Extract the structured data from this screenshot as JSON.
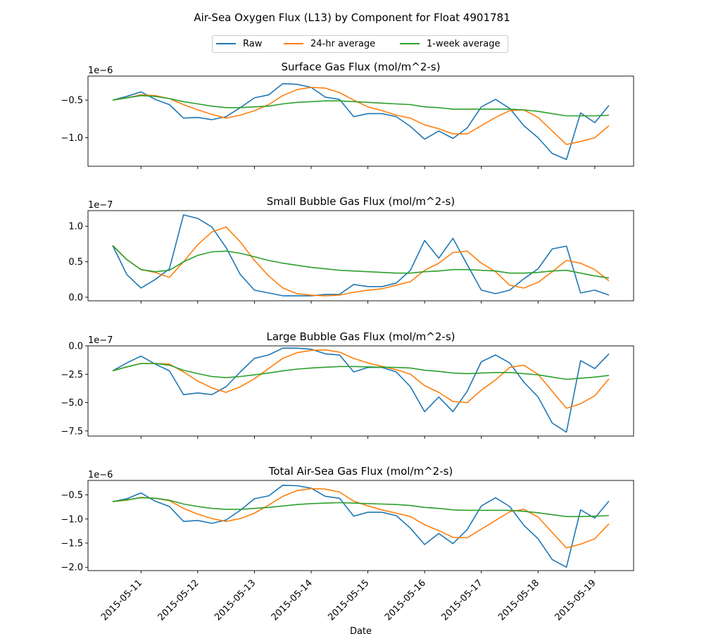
{
  "figure_title": "Air-Sea Oxygen Flux (L13) by Component for Float 4901781",
  "legend": [
    {
      "label": "Raw",
      "color": "#1f77b4"
    },
    {
      "label": "24-hr average",
      "color": "#ff7f0e"
    },
    {
      "label": "1-week average",
      "color": "#2ca02c"
    }
  ],
  "chart_data": [
    {
      "type": "line",
      "title": "Surface Gas Flux (mol/m^2-s)",
      "offset_label": "1e−6",
      "xlabel": "",
      "ylabel": "",
      "ylim": [
        -1.38,
        -0.18
      ],
      "yticks": [
        -1.0,
        -0.5
      ],
      "ytick_labels": [
        "−1.0",
        "−0.5"
      ],
      "x": [
        "2015-05-10 12:00",
        "2015-05-10 18:00",
        "2015-05-11 00:00",
        "2015-05-11 06:00",
        "2015-05-11 12:00",
        "2015-05-11 18:00",
        "2015-05-12 00:00",
        "2015-05-12 06:00",
        "2015-05-12 12:00",
        "2015-05-12 18:00",
        "2015-05-13 00:00",
        "2015-05-13 06:00",
        "2015-05-13 12:00",
        "2015-05-13 18:00",
        "2015-05-14 00:00",
        "2015-05-14 06:00",
        "2015-05-14 12:00",
        "2015-05-14 18:00",
        "2015-05-15 00:00",
        "2015-05-15 06:00",
        "2015-05-15 12:00",
        "2015-05-15 18:00",
        "2015-05-16 00:00",
        "2015-05-16 06:00",
        "2015-05-16 12:00",
        "2015-05-16 18:00",
        "2015-05-17 00:00",
        "2015-05-17 06:00",
        "2015-05-17 12:00",
        "2015-05-17 18:00",
        "2015-05-18 00:00",
        "2015-05-18 06:00",
        "2015-05-18 12:00",
        "2015-05-18 18:00",
        "2015-05-19 00:00",
        "2015-05-19 06:00"
      ],
      "series": [
        {
          "name": "Raw",
          "color": "#1f77b4",
          "values": [
            -0.5,
            -0.45,
            -0.39,
            -0.49,
            -0.56,
            -0.74,
            -0.73,
            -0.76,
            -0.72,
            -0.6,
            -0.47,
            -0.43,
            -0.28,
            -0.29,
            -0.33,
            -0.46,
            -0.49,
            -0.72,
            -0.68,
            -0.68,
            -0.72,
            -0.85,
            -1.02,
            -0.91,
            -1.01,
            -0.87,
            -0.59,
            -0.49,
            -0.61,
            -0.84,
            -1.0,
            -1.21,
            -1.29,
            -0.67,
            -0.8,
            -0.57
          ]
        },
        {
          "name": "24-hr average",
          "color": "#ff7f0e",
          "values": [
            -0.5,
            -0.47,
            -0.43,
            -0.44,
            -0.48,
            -0.56,
            -0.63,
            -0.69,
            -0.74,
            -0.7,
            -0.64,
            -0.56,
            -0.44,
            -0.36,
            -0.33,
            -0.34,
            -0.4,
            -0.5,
            -0.59,
            -0.64,
            -0.7,
            -0.74,
            -0.83,
            -0.88,
            -0.95,
            -0.95,
            -0.84,
            -0.73,
            -0.64,
            -0.63,
            -0.73,
            -0.91,
            -1.09,
            -1.05,
            -1.0,
            -0.84
          ]
        },
        {
          "name": "1-week average",
          "color": "#2ca02c",
          "values": [
            -0.5,
            -0.47,
            -0.44,
            -0.45,
            -0.48,
            -0.52,
            -0.55,
            -0.58,
            -0.6,
            -0.6,
            -0.59,
            -0.58,
            -0.55,
            -0.53,
            -0.52,
            -0.51,
            -0.51,
            -0.52,
            -0.53,
            -0.54,
            -0.55,
            -0.56,
            -0.59,
            -0.6,
            -0.62,
            -0.62,
            -0.62,
            -0.62,
            -0.62,
            -0.63,
            -0.65,
            -0.68,
            -0.71,
            -0.71,
            -0.71,
            -0.7
          ]
        }
      ]
    },
    {
      "type": "line",
      "title": "Small Bubble Gas Flux (mol/m^2-s)",
      "offset_label": "1e−7",
      "xlabel": "",
      "ylabel": "",
      "ylim": [
        -0.05,
        1.22
      ],
      "yticks": [
        0.0,
        0.5,
        1.0
      ],
      "ytick_labels": [
        "0.0",
        "0.5",
        "1.0"
      ],
      "x": [
        "2015-05-10 12:00",
        "2015-05-10 18:00",
        "2015-05-11 00:00",
        "2015-05-11 06:00",
        "2015-05-11 12:00",
        "2015-05-11 18:00",
        "2015-05-12 00:00",
        "2015-05-12 06:00",
        "2015-05-12 12:00",
        "2015-05-12 18:00",
        "2015-05-13 00:00",
        "2015-05-13 06:00",
        "2015-05-13 12:00",
        "2015-05-13 18:00",
        "2015-05-14 00:00",
        "2015-05-14 06:00",
        "2015-05-14 12:00",
        "2015-05-14 18:00",
        "2015-05-15 00:00",
        "2015-05-15 06:00",
        "2015-05-15 12:00",
        "2015-05-15 18:00",
        "2015-05-16 00:00",
        "2015-05-16 06:00",
        "2015-05-16 12:00",
        "2015-05-16 18:00",
        "2015-05-17 00:00",
        "2015-05-17 06:00",
        "2015-05-17 12:00",
        "2015-05-17 18:00",
        "2015-05-18 00:00",
        "2015-05-18 06:00",
        "2015-05-18 12:00",
        "2015-05-18 18:00",
        "2015-05-19 00:00",
        "2015-05-19 06:00"
      ],
      "series": [
        {
          "name": "Raw",
          "color": "#1f77b4",
          "values": [
            0.73,
            0.32,
            0.13,
            0.25,
            0.4,
            1.16,
            1.11,
            0.99,
            0.7,
            0.32,
            0.1,
            0.06,
            0.02,
            0.02,
            0.02,
            0.04,
            0.04,
            0.18,
            0.15,
            0.15,
            0.2,
            0.38,
            0.8,
            0.55,
            0.83,
            0.46,
            0.1,
            0.05,
            0.1,
            0.26,
            0.4,
            0.68,
            0.72,
            0.06,
            0.1,
            0.03
          ]
        },
        {
          "name": "24-hr average",
          "color": "#ff7f0e",
          "values": [
            0.73,
            0.53,
            0.39,
            0.35,
            0.28,
            0.5,
            0.74,
            0.92,
            0.99,
            0.78,
            0.52,
            0.3,
            0.13,
            0.05,
            0.03,
            0.02,
            0.03,
            0.07,
            0.1,
            0.12,
            0.17,
            0.22,
            0.38,
            0.48,
            0.63,
            0.65,
            0.48,
            0.36,
            0.17,
            0.13,
            0.21,
            0.36,
            0.52,
            0.48,
            0.39,
            0.23
          ]
        },
        {
          "name": "1-week average",
          "color": "#2ca02c",
          "values": [
            0.73,
            0.53,
            0.39,
            0.36,
            0.38,
            0.5,
            0.59,
            0.64,
            0.65,
            0.62,
            0.57,
            0.52,
            0.48,
            0.45,
            0.42,
            0.4,
            0.38,
            0.37,
            0.36,
            0.35,
            0.34,
            0.34,
            0.36,
            0.37,
            0.39,
            0.39,
            0.38,
            0.37,
            0.34,
            0.34,
            0.35,
            0.37,
            0.38,
            0.34,
            0.3,
            0.27
          ]
        }
      ]
    },
    {
      "type": "line",
      "title": "Large Bubble Gas Flux (mol/m^2-s)",
      "offset_label": "1e−7",
      "xlabel": "",
      "ylabel": "",
      "ylim": [
        -7.95,
        0.0
      ],
      "yticks": [
        -7.5,
        -5.0,
        -2.5,
        0.0
      ],
      "ytick_labels": [
        "−7.5",
        "−5.0",
        "−2.5",
        "0.0"
      ],
      "x": [
        "2015-05-10 12:00",
        "2015-05-10 18:00",
        "2015-05-11 00:00",
        "2015-05-11 06:00",
        "2015-05-11 12:00",
        "2015-05-11 18:00",
        "2015-05-12 00:00",
        "2015-05-12 06:00",
        "2015-05-12 12:00",
        "2015-05-12 18:00",
        "2015-05-13 00:00",
        "2015-05-13 06:00",
        "2015-05-13 12:00",
        "2015-05-13 18:00",
        "2015-05-14 00:00",
        "2015-05-14 06:00",
        "2015-05-14 12:00",
        "2015-05-14 18:00",
        "2015-05-15 00:00",
        "2015-05-15 06:00",
        "2015-05-15 12:00",
        "2015-05-15 18:00",
        "2015-05-16 00:00",
        "2015-05-16 06:00",
        "2015-05-16 12:00",
        "2015-05-16 18:00",
        "2015-05-17 00:00",
        "2015-05-17 06:00",
        "2015-05-17 12:00",
        "2015-05-17 18:00",
        "2015-05-18 00:00",
        "2015-05-18 06:00",
        "2015-05-18 12:00",
        "2015-05-18 18:00",
        "2015-05-19 00:00",
        "2015-05-19 06:00"
      ],
      "series": [
        {
          "name": "Raw",
          "color": "#1f77b4",
          "values": [
            -2.2,
            -1.5,
            -0.9,
            -1.6,
            -2.2,
            -4.3,
            -4.15,
            -4.3,
            -3.6,
            -2.3,
            -1.1,
            -0.8,
            -0.2,
            -0.2,
            -0.3,
            -0.7,
            -0.8,
            -2.3,
            -1.9,
            -1.9,
            -2.3,
            -3.6,
            -5.8,
            -4.5,
            -5.8,
            -4.0,
            -1.4,
            -0.8,
            -1.5,
            -3.2,
            -4.5,
            -6.8,
            -7.6,
            -1.3,
            -2.0,
            -0.7
          ]
        },
        {
          "name": "24-hr average",
          "color": "#ff7f0e",
          "values": [
            -2.2,
            -1.85,
            -1.55,
            -1.55,
            -1.6,
            -2.3,
            -3.1,
            -3.7,
            -4.1,
            -3.6,
            -2.9,
            -2.0,
            -1.1,
            -0.6,
            -0.4,
            -0.35,
            -0.55,
            -1.1,
            -1.5,
            -1.8,
            -2.1,
            -2.5,
            -3.5,
            -4.1,
            -4.9,
            -5.0,
            -3.9,
            -3.0,
            -1.9,
            -1.7,
            -2.5,
            -4.0,
            -5.5,
            -5.1,
            -4.4,
            -2.9
          ]
        },
        {
          "name": "1-week average",
          "color": "#2ca02c",
          "values": [
            -2.2,
            -1.85,
            -1.55,
            -1.55,
            -1.7,
            -2.15,
            -2.45,
            -2.7,
            -2.8,
            -2.7,
            -2.55,
            -2.4,
            -2.2,
            -2.05,
            -1.95,
            -1.88,
            -1.82,
            -1.82,
            -1.85,
            -1.88,
            -1.9,
            -1.95,
            -2.15,
            -2.25,
            -2.4,
            -2.45,
            -2.4,
            -2.35,
            -2.35,
            -2.45,
            -2.55,
            -2.75,
            -2.95,
            -2.85,
            -2.75,
            -2.6
          ]
        }
      ]
    },
    {
      "type": "line",
      "title": "Total Air-Sea Gas Flux (mol/m^2-s)",
      "offset_label": "1e−6",
      "xlabel": "Date",
      "ylabel": "",
      "ylim": [
        -2.07,
        -0.2
      ],
      "yticks": [
        -2.0,
        -1.5,
        -1.0,
        -0.5
      ],
      "ytick_labels": [
        "−2.0",
        "−1.5",
        "−1.0",
        "−0.5"
      ],
      "x": [
        "2015-05-10 12:00",
        "2015-05-10 18:00",
        "2015-05-11 00:00",
        "2015-05-11 06:00",
        "2015-05-11 12:00",
        "2015-05-11 18:00",
        "2015-05-12 00:00",
        "2015-05-12 06:00",
        "2015-05-12 12:00",
        "2015-05-12 18:00",
        "2015-05-13 00:00",
        "2015-05-13 06:00",
        "2015-05-13 12:00",
        "2015-05-13 18:00",
        "2015-05-14 00:00",
        "2015-05-14 06:00",
        "2015-05-14 12:00",
        "2015-05-14 18:00",
        "2015-05-15 00:00",
        "2015-05-15 06:00",
        "2015-05-15 12:00",
        "2015-05-15 18:00",
        "2015-05-16 00:00",
        "2015-05-16 06:00",
        "2015-05-16 12:00",
        "2015-05-16 18:00",
        "2015-05-17 00:00",
        "2015-05-17 06:00",
        "2015-05-17 12:00",
        "2015-05-17 18:00",
        "2015-05-18 00:00",
        "2015-05-18 06:00",
        "2015-05-18 12:00",
        "2015-05-18 18:00",
        "2015-05-19 00:00",
        "2015-05-19 06:00"
      ],
      "series": [
        {
          "name": "Raw",
          "color": "#1f77b4",
          "values": [
            -0.64,
            -0.58,
            -0.46,
            -0.63,
            -0.74,
            -1.05,
            -1.03,
            -1.09,
            -1.02,
            -0.82,
            -0.58,
            -0.52,
            -0.3,
            -0.31,
            -0.36,
            -0.53,
            -0.57,
            -0.94,
            -0.86,
            -0.86,
            -0.93,
            -1.19,
            -1.53,
            -1.3,
            -1.51,
            -1.22,
            -0.73,
            -0.56,
            -0.74,
            -1.13,
            -1.41,
            -1.84,
            -2.0,
            -0.81,
            -0.98,
            -0.63
          ]
        },
        {
          "name": "24-hr average",
          "color": "#ff7f0e",
          "values": [
            -0.64,
            -0.61,
            -0.55,
            -0.57,
            -0.62,
            -0.78,
            -0.9,
            -0.99,
            -1.05,
            -0.99,
            -0.88,
            -0.71,
            -0.53,
            -0.41,
            -0.37,
            -0.38,
            -0.44,
            -0.63,
            -0.73,
            -0.81,
            -0.88,
            -0.95,
            -1.12,
            -1.24,
            -1.38,
            -1.39,
            -1.21,
            -1.03,
            -0.85,
            -0.8,
            -0.96,
            -1.28,
            -1.6,
            -1.52,
            -1.41,
            -1.1
          ]
        },
        {
          "name": "1-week average",
          "color": "#2ca02c",
          "values": [
            -0.64,
            -0.6,
            -0.56,
            -0.57,
            -0.61,
            -0.69,
            -0.74,
            -0.78,
            -0.8,
            -0.8,
            -0.78,
            -0.76,
            -0.73,
            -0.7,
            -0.68,
            -0.67,
            -0.66,
            -0.67,
            -0.68,
            -0.69,
            -0.7,
            -0.72,
            -0.76,
            -0.78,
            -0.81,
            -0.82,
            -0.82,
            -0.82,
            -0.82,
            -0.84,
            -0.87,
            -0.91,
            -0.95,
            -0.95,
            -0.94,
            -0.93
          ]
        }
      ]
    }
  ],
  "x_ticks": [
    "2015-05-11",
    "2015-05-12",
    "2015-05-13",
    "2015-05-14",
    "2015-05-15",
    "2015-05-16",
    "2015-05-17",
    "2015-05-18",
    "2015-05-19"
  ]
}
